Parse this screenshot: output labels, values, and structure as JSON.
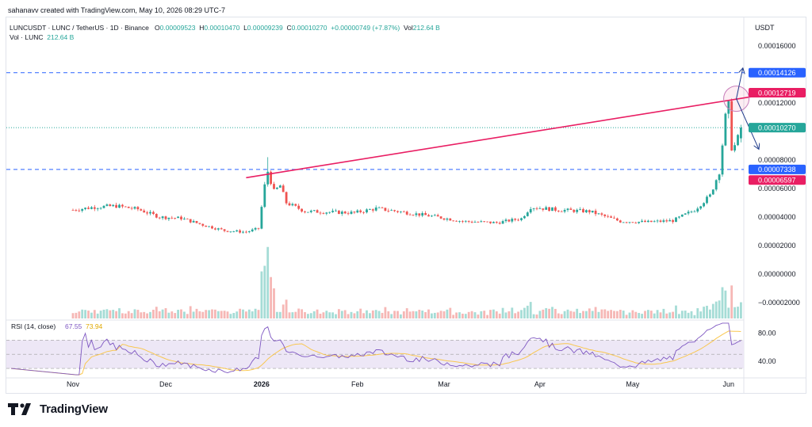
{
  "header": {
    "credit": "sahanavv created with TradingView.com, May 10, 2026 08:29 UTC-7",
    "symbol": "LUNCUSDT · LUNC / TetherUS · 1D · Binance",
    "open_label": "O",
    "open": "0.00009523",
    "high_label": "H",
    "high": "0.00010470",
    "low_label": "L",
    "low": "0.00009239",
    "close_label": "C",
    "close": "0.00010270",
    "change": "+0.00000749 (+7.87%)",
    "volume_label": "Vol",
    "volume": "212.64 B",
    "vol_row_label": "Vol · LUNC",
    "vol_row_value": "212.64 B",
    "currency": "USDT"
  },
  "footer": {
    "brand": "TradingView",
    "logo_icon": "tradingview-logo-icon"
  },
  "chart_data": [
    {
      "type": "candlestick",
      "name": "LUNCUSDT",
      "ylim": [
        -3e-05,
        0.00018
      ],
      "y_ticks": [
        "0.00016000",
        "0.00012000",
        "0.00008000",
        "0.00006000",
        "0.00004000",
        "0.00002000",
        "0.00000000",
        "−0.00002000"
      ],
      "y_tick_values": [
        0.00016,
        0.00012,
        8e-05,
        6e-05,
        4e-05,
        2e-05,
        0.0,
        -2e-05
      ],
      "x_ticks": [
        "Nov",
        "Dec",
        "2026",
        "Feb",
        "Mar",
        "Apr",
        "May",
        "Jun"
      ],
      "x_tick_days": [
        0,
        30,
        61,
        92,
        120,
        151,
        181,
        212
      ],
      "x_start_date": "2025-10-06",
      "key_points": [
        {
          "date": "2025-10-06",
          "close": 4.5e-05
        },
        {
          "date": "2025-10-13",
          "close": 4.7e-05
        },
        {
          "date": "2025-10-20",
          "close": 4.78e-05
        },
        {
          "date": "2025-10-27",
          "close": 4.55e-05
        },
        {
          "date": "2025-11-03",
          "close": 4e-05
        },
        {
          "date": "2025-11-10",
          "close": 3.92e-05
        },
        {
          "date": "2025-11-17",
          "close": 3.45e-05
        },
        {
          "date": "2025-11-24",
          "close": 3.05e-05
        },
        {
          "date": "2025-12-01",
          "close": 2.95e-05
        },
        {
          "date": "2025-12-05",
          "close": 3.2e-05
        },
        {
          "date": "2025-12-07",
          "close": 6.2e-05
        },
        {
          "date": "2025-12-08",
          "close": 7.2e-05
        },
        {
          "date": "2025-12-10",
          "close": 5.8e-05
        },
        {
          "date": "2025-12-12",
          "close": 6.2e-05
        },
        {
          "date": "2025-12-14",
          "close": 5e-05
        },
        {
          "date": "2025-12-20",
          "close": 4.4e-05
        },
        {
          "date": "2026-01-05",
          "close": 4.3e-05
        },
        {
          "date": "2026-01-12",
          "close": 4.6e-05
        },
        {
          "date": "2026-01-19",
          "close": 4.4e-05
        },
        {
          "date": "2026-02-01",
          "close": 4e-05
        },
        {
          "date": "2026-02-09",
          "close": 3.7e-05
        },
        {
          "date": "2026-02-20",
          "close": 3.6e-05
        },
        {
          "date": "2026-02-28",
          "close": 3.9e-05
        },
        {
          "date": "2026-03-03",
          "close": 4.7e-05
        },
        {
          "date": "2026-03-12",
          "close": 4.5e-05
        },
        {
          "date": "2026-03-22",
          "close": 4.4e-05
        },
        {
          "date": "2026-04-01",
          "close": 3.7e-05
        },
        {
          "date": "2026-04-10",
          "close": 3.65e-05
        },
        {
          "date": "2026-04-18",
          "close": 3.75e-05
        },
        {
          "date": "2026-04-25",
          "close": 4.5e-05
        },
        {
          "date": "2026-04-30",
          "close": 5.5e-05
        },
        {
          "date": "2026-05-03",
          "close": 7.2e-05
        },
        {
          "date": "2026-05-05",
          "close": 0.00011
        },
        {
          "date": "2026-05-06",
          "close": 0.000118
        },
        {
          "date": "2026-05-07",
          "close": 8.9e-05
        },
        {
          "date": "2026-05-08",
          "close": 9e-05
        },
        {
          "date": "2026-05-09",
          "close": 9.52e-05
        },
        {
          "date": "2026-05-10",
          "open": 9.523e-05,
          "high": 0.0001047,
          "low": 9.239e-05,
          "close": 0.0001027
        }
      ],
      "price_labels": [
        {
          "value": 0.00014126,
          "text": "0.00014126",
          "color": "#2962ff"
        },
        {
          "value": 0.00012719,
          "text": "0.00012719",
          "color": "#e91e63"
        },
        {
          "value": 0.0001027,
          "text": "0.00010270",
          "color": "#26a69a"
        },
        {
          "value": 7.338e-05,
          "text": "0.00007338",
          "color": "#2962ff"
        },
        {
          "value": 6.597e-05,
          "text": "0.00006597",
          "color": "#e91e63"
        }
      ],
      "horizontal_lines": [
        0.00014126,
        7.338e-05,
        0.0001027
      ],
      "trendline": {
        "from_date": "2025-12-01",
        "from_value": 6.76e-05,
        "to_date": "2026-05-18",
        "to_value": 0.000126,
        "color": "#e91e63"
      },
      "colors": {
        "up": "#26a69a",
        "down": "#ef5350",
        "level": "#2962ff",
        "trend": "#e91e63"
      }
    },
    {
      "type": "line",
      "name": "RSI (14, close)",
      "label": "RSI (14, close)",
      "value_1": "67.55",
      "value_2": "73.94",
      "ylim": [
        20,
        95
      ],
      "y_ticks": [
        "80.00",
        "40.00"
      ],
      "y_tick_values": [
        80,
        40
      ],
      "bands": [
        70,
        50,
        30
      ],
      "colors": {
        "rsi": "#7e57c2",
        "ma": "#f9c74f",
        "band_fill": "#ede7f6"
      }
    }
  ]
}
